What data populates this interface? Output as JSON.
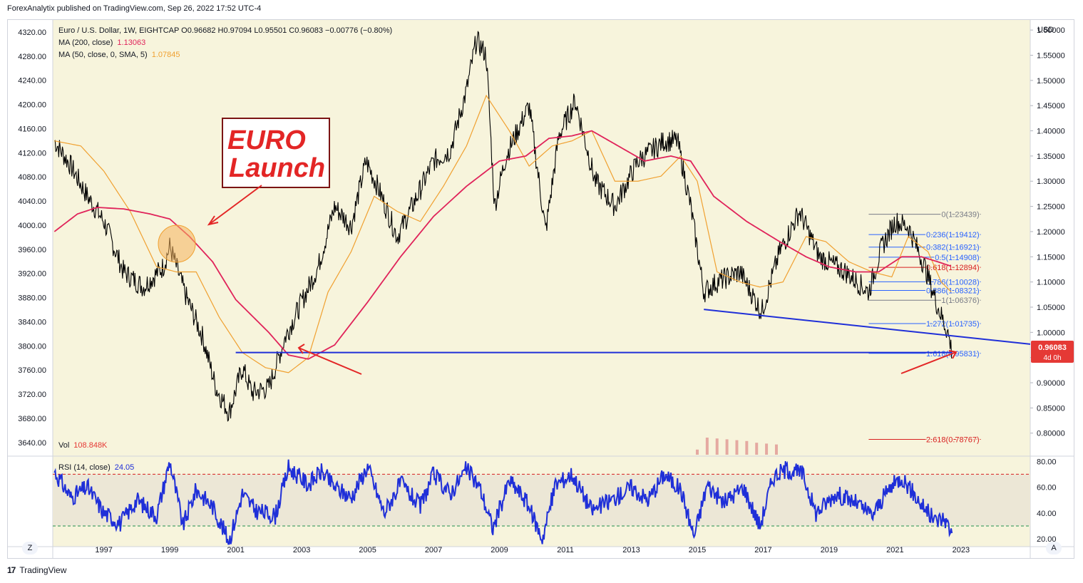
{
  "publish_line": "ForexAnalytix published on TradingView.com, Sep 26, 2022 17:52 UTC-4",
  "footer_brand": "TradingView",
  "footer_logo": "17",
  "corner_left": "Z",
  "corner_right": "A",
  "legend": {
    "symbol_line": "Euro / U.S. Dollar, 1W, EIGHTCAP  O0.96682  H0.97094  L0.95501  C0.96083  −0.00776 (−0.80%)",
    "ma200_label": "MA (200, close)",
    "ma200_value": "1.13063",
    "ma50_label": "MA (50, close, 0, SMA, 5)",
    "ma50_value": "1.07845",
    "vol_label": "Vol",
    "vol_value": "108.848K",
    "rsi_label": "RSI (14, close)",
    "rsi_value": "24.05"
  },
  "annotation": {
    "line1": "EURO",
    "line2": "Launch"
  },
  "price_tag": {
    "value": "0.96083",
    "countdown": "4d 0h"
  },
  "colors": {
    "plot_bg": "#f7f4dc",
    "candles": "#000000",
    "ma200": "#e0235a",
    "ma50": "#f0a030",
    "trendline": "#1f2fd8",
    "rsi": "#1f2fd8",
    "fib_blue": "#2962ff",
    "fib_red": "#d81e1e",
    "arrows": "#e32626",
    "price_tag": "#e53935"
  },
  "chart_data": [
    {
      "type": "line",
      "title": "Euro / U.S. Dollar, 1W",
      "xlabel": "",
      "ylabel": "USD",
      "right_axis_unit": "USD",
      "xlim": [
        1995.45,
        2025.1
      ],
      "ylim": [
        0.76,
        1.62
      ],
      "x_ticks": [
        "1997",
        "1999",
        "2001",
        "2003",
        "2005",
        "2007",
        "2009",
        "2011",
        "2013",
        "2015",
        "2017",
        "2019",
        "2021",
        "2023"
      ],
      "right_ticks": [
        "0.80000",
        "0.85000",
        "0.90000",
        "0.95000",
        "1.00000",
        "1.05000",
        "1.10000",
        "1.15000",
        "1.20000",
        "1.25000",
        "1.30000",
        "1.35000",
        "1.40000",
        "1.45000",
        "1.50000",
        "1.55000",
        "1.60000"
      ],
      "left_ticks": [
        "3640.00",
        "3680.00",
        "3720.00",
        "3760.00",
        "3800.00",
        "3840.00",
        "3880.00",
        "3920.00",
        "3960.00",
        "4000.00",
        "4040.00",
        "4080.00",
        "4120.00",
        "4160.00",
        "4200.00",
        "4240.00",
        "4280.00",
        "4320.00"
      ],
      "left_axis_range": [
        3622,
        4340
      ],
      "grid": false,
      "series": [
        {
          "name": "Euro / U.S. Dollar",
          "style": "close path (approx.)",
          "x": [
            1995.5,
            1996.0,
            1996.5,
            1997.0,
            1997.6,
            1998.2,
            1998.8,
            1999.0,
            1999.5,
            2000.0,
            2000.4,
            2000.8,
            2001.2,
            2001.5,
            2002.0,
            2002.5,
            2003.0,
            2003.5,
            2004.0,
            2004.5,
            2004.95,
            2005.3,
            2005.9,
            2006.5,
            2007.0,
            2007.5,
            2008.0,
            2008.3,
            2008.6,
            2008.85,
            2009.2,
            2009.9,
            2010.4,
            2010.8,
            2011.3,
            2011.9,
            2012.5,
            2013.2,
            2014.0,
            2014.4,
            2014.8,
            2015.2,
            2015.6,
            2016.3,
            2016.95,
            2017.5,
            2018.1,
            2018.7,
            2019.5,
            2020.2,
            2020.6,
            2021.0,
            2021.4,
            2021.9,
            2022.3,
            2022.6,
            2022.73
          ],
          "values": [
            1.38,
            1.33,
            1.27,
            1.22,
            1.12,
            1.09,
            1.13,
            1.17,
            1.07,
            0.99,
            0.89,
            0.84,
            0.93,
            0.88,
            0.89,
            0.99,
            1.06,
            1.13,
            1.25,
            1.21,
            1.34,
            1.29,
            1.19,
            1.27,
            1.34,
            1.36,
            1.48,
            1.58,
            1.55,
            1.25,
            1.35,
            1.45,
            1.2,
            1.39,
            1.46,
            1.3,
            1.25,
            1.34,
            1.38,
            1.38,
            1.25,
            1.08,
            1.1,
            1.12,
            1.04,
            1.16,
            1.24,
            1.15,
            1.12,
            1.08,
            1.17,
            1.22,
            1.21,
            1.13,
            1.05,
            1.0,
            0.96
          ],
          "color": "#000000"
        },
        {
          "name": "MA (200, close)",
          "x": [
            1995.5,
            1996.2,
            1996.8,
            1997.6,
            1998.4,
            1999.0,
            1999.6,
            2000.3,
            2001.0,
            2002.0,
            2002.6,
            2003.2,
            2004.0,
            2005.0,
            2006.0,
            2007.0,
            2008.0,
            2009.0,
            2009.8,
            2010.5,
            2011.2,
            2011.8,
            2012.6,
            2013.4,
            2014.2,
            2014.8,
            2015.5,
            2016.5,
            2017.5,
            2018.3,
            2019.0,
            2019.8,
            2020.5,
            2021.2,
            2021.8,
            2022.3,
            2022.73
          ],
          "values": [
            1.2,
            1.235,
            1.248,
            1.245,
            1.235,
            1.225,
            1.19,
            1.14,
            1.065,
            1.0,
            0.955,
            0.947,
            0.975,
            1.06,
            1.15,
            1.23,
            1.29,
            1.34,
            1.35,
            1.385,
            1.39,
            1.4,
            1.37,
            1.34,
            1.35,
            1.34,
            1.27,
            1.22,
            1.18,
            1.15,
            1.13,
            1.12,
            1.12,
            1.15,
            1.15,
            1.14,
            1.13063
          ],
          "color": "#e0235a"
        },
        {
          "name": "MA (50, close, 0, SMA, 5)",
          "x": [
            1995.5,
            1996.3,
            1997.0,
            1997.8,
            1998.6,
            1999.2,
            1999.8,
            2000.5,
            2001.2,
            2001.9,
            2002.6,
            2003.2,
            2003.8,
            2004.5,
            2005.2,
            2005.9,
            2006.6,
            2007.3,
            2008.0,
            2008.6,
            2009.3,
            2009.9,
            2010.6,
            2011.2,
            2011.8,
            2012.5,
            2013.2,
            2013.9,
            2014.5,
            2015.0,
            2015.6,
            2016.3,
            2016.9,
            2017.6,
            2018.3,
            2018.9,
            2019.6,
            2020.3,
            2020.9,
            2021.4,
            2022.0,
            2022.4,
            2022.73
          ],
          "values": [
            1.38,
            1.37,
            1.32,
            1.24,
            1.13,
            1.12,
            1.12,
            1.03,
            0.96,
            0.93,
            0.92,
            0.95,
            1.08,
            1.16,
            1.27,
            1.24,
            1.22,
            1.29,
            1.37,
            1.47,
            1.4,
            1.33,
            1.37,
            1.38,
            1.4,
            1.3,
            1.3,
            1.31,
            1.35,
            1.3,
            1.12,
            1.1,
            1.09,
            1.1,
            1.19,
            1.18,
            1.14,
            1.12,
            1.11,
            1.19,
            1.16,
            1.1,
            1.07845
          ],
          "color": "#f0a030"
        }
      ],
      "trendlines": [
        {
          "name": "falling support",
          "x": [
            2015.2,
            2025.1
          ],
          "values": [
            1.0455,
            0.9766
          ],
          "color": "#1f2fd8"
        },
        {
          "name": "horizontal support",
          "x": [
            2001.0,
            2022.73
          ],
          "values": [
            0.96,
            0.96
          ],
          "color": "#1f2fd8"
        }
      ],
      "fibonacci": {
        "x_start": 2020.2,
        "x_end": 2023.6,
        "levels": [
          {
            "label": "0(1.23439)",
            "value": 1.23439,
            "color": "#787b86"
          },
          {
            "label": "0.236(1.19412)",
            "value": 1.19412,
            "color": "#2962ff"
          },
          {
            "label": "0.382(1.16921)",
            "value": 1.16921,
            "color": "#2962ff"
          },
          {
            "label": "0.5(1.14908)",
            "value": 1.14908,
            "color": "#2962ff"
          },
          {
            "label": "0.618(1.12894)",
            "value": 1.12894,
            "color": "#d81e1e"
          },
          {
            "label": "0.786(1.10028)",
            "value": 1.10028,
            "color": "#2962ff"
          },
          {
            "label": "0.886(1.08321)",
            "value": 1.08321,
            "color": "#2962ff"
          },
          {
            "label": "1(1.06376)",
            "value": 1.06376,
            "color": "#787b86"
          },
          {
            "label": "1.272(1.01735)",
            "value": 1.01735,
            "color": "#2962ff"
          },
          {
            "label": "1.618(0.95831)",
            "value": 0.95831,
            "color": "#2962ff"
          },
          {
            "label": "2.618(0.78767)",
            "value": 0.78767,
            "color": "#d81e1e"
          }
        ]
      }
    },
    {
      "type": "bar",
      "title": "Vol",
      "x": [
        2015.0,
        2015.3,
        2015.6,
        2015.9,
        2016.2,
        2016.5,
        2016.8,
        2017.1,
        2017.4
      ],
      "values": [
        0.3,
        1.0,
        0.95,
        0.9,
        0.85,
        0.8,
        0.7,
        0.65,
        0.6
      ],
      "color": "#e5a9a1"
    },
    {
      "type": "line",
      "title": "RSI (14, close)",
      "ylim": [
        14,
        84
      ],
      "y_ticks": [
        "20.00",
        "40.00",
        "60.00",
        "80.00"
      ],
      "bands": [
        30,
        70
      ],
      "series": [
        {
          "name": "RSI (14, close)",
          "x": [
            1995.5,
            1996.0,
            1996.5,
            1997.0,
            1997.5,
            1998.0,
            1998.6,
            1999.0,
            1999.4,
            1999.8,
            2000.3,
            2000.8,
            2001.2,
            2001.6,
            2002.2,
            2002.6,
            2003.2,
            2003.6,
            2004.0,
            2004.5,
            2005.0,
            2005.5,
            2006.0,
            2006.6,
            2007.0,
            2007.5,
            2008.0,
            2008.4,
            2008.8,
            2009.3,
            2009.8,
            2010.3,
            2010.7,
            2011.2,
            2011.8,
            2012.4,
            2013.0,
            2013.5,
            2014.0,
            2014.5,
            2014.9,
            2015.3,
            2015.8,
            2016.4,
            2016.9,
            2017.3,
            2017.7,
            2018.2,
            2018.6,
            2019.2,
            2019.8,
            2020.3,
            2020.8,
            2021.2,
            2021.7,
            2022.2,
            2022.5,
            2022.73
          ],
          "values": [
            72,
            52,
            60,
            40,
            32,
            50,
            38,
            80,
            30,
            58,
            45,
            18,
            55,
            42,
            38,
            75,
            62,
            72,
            60,
            52,
            76,
            40,
            63,
            45,
            70,
            55,
            74,
            60,
            28,
            65,
            50,
            20,
            62,
            70,
            42,
            50,
            60,
            50,
            70,
            58,
            22,
            62,
            48,
            60,
            30,
            68,
            74,
            70,
            40,
            55,
            48,
            38,
            58,
            68,
            50,
            34,
            36,
            24.05
          ],
          "color": "#1f2fd8"
        }
      ]
    }
  ]
}
